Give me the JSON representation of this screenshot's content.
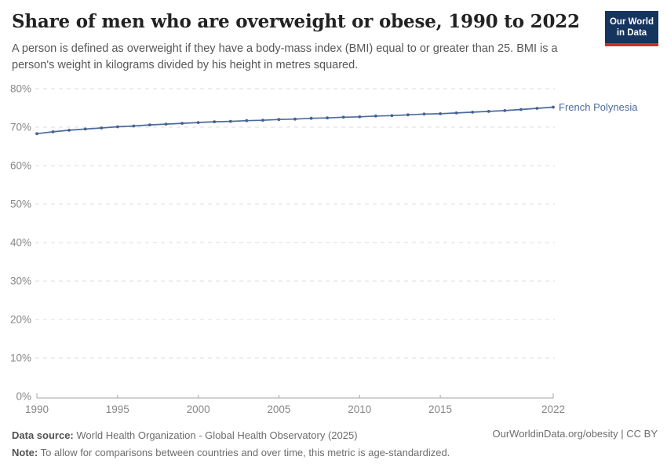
{
  "header": {
    "title": "Share of men who are overweight or obese, 1990 to 2022",
    "subtitle": "A person is defined as overweight if they have a body-mass index (BMI) equal to or greater than 25. BMI is a person's weight in kilograms divided by his height in metres squared.",
    "logo": {
      "line1": "Our World",
      "line2": "in Data"
    }
  },
  "footer": {
    "data_source_label": "Data source:",
    "data_source_value": "World Health Organization - Global Health Observatory (2025)",
    "note_label": "Note:",
    "note_value": "To allow for comparisons between countries and over time, this metric is age-standardized.",
    "attribution": "OurWorldinData.org/obesity | CC BY"
  },
  "chart_data": {
    "type": "line",
    "title": "Share of men who are overweight or obese, 1990 to 2022",
    "entity_label": "French Polynesia",
    "xlabel": "",
    "ylabel": "",
    "ylim": [
      0,
      80
    ],
    "grid": "horizontal-dashed",
    "legend_position": "end-of-line",
    "x": [
      1990,
      1991,
      1992,
      1993,
      1994,
      1995,
      1996,
      1997,
      1998,
      1999,
      2000,
      2001,
      2002,
      2003,
      2004,
      2005,
      2006,
      2007,
      2008,
      2009,
      2010,
      2011,
      2012,
      2013,
      2014,
      2015,
      2016,
      2017,
      2018,
      2019,
      2020,
      2021,
      2022
    ],
    "series": [
      {
        "name": "French Polynesia",
        "values": [
          68.3,
          68.8,
          69.2,
          69.5,
          69.8,
          70.1,
          70.3,
          70.6,
          70.8,
          71.0,
          71.2,
          71.4,
          71.5,
          71.7,
          71.8,
          72.0,
          72.1,
          72.3,
          72.4,
          72.6,
          72.7,
          72.9,
          73.0,
          73.2,
          73.4,
          73.5,
          73.7,
          73.9,
          74.1,
          74.3,
          74.6,
          74.9,
          75.2
        ]
      }
    ],
    "y_ticks": [
      {
        "value": 0,
        "label": "0%"
      },
      {
        "value": 10,
        "label": "10%"
      },
      {
        "value": 20,
        "label": "20%"
      },
      {
        "value": 30,
        "label": "30%"
      },
      {
        "value": 40,
        "label": "40%"
      },
      {
        "value": 50,
        "label": "50%"
      },
      {
        "value": 60,
        "label": "60%"
      },
      {
        "value": 70,
        "label": "70%"
      },
      {
        "value": 80,
        "label": "80%"
      }
    ],
    "x_ticks": [
      {
        "value": 1990,
        "label": "1990"
      },
      {
        "value": 1995,
        "label": "1995"
      },
      {
        "value": 2000,
        "label": "2000"
      },
      {
        "value": 2005,
        "label": "2005"
      },
      {
        "value": 2010,
        "label": "2010"
      },
      {
        "value": 2015,
        "label": "2015"
      },
      {
        "value": 2022,
        "label": "2022"
      }
    ],
    "colors": {
      "line": "#4c6a9c",
      "marker": "#44618f",
      "grid": "#dcdcdc",
      "axis": "#a5a5a5",
      "tick_text": "#878787",
      "title_text": "#222222",
      "subtitle_text": "#575757"
    }
  }
}
